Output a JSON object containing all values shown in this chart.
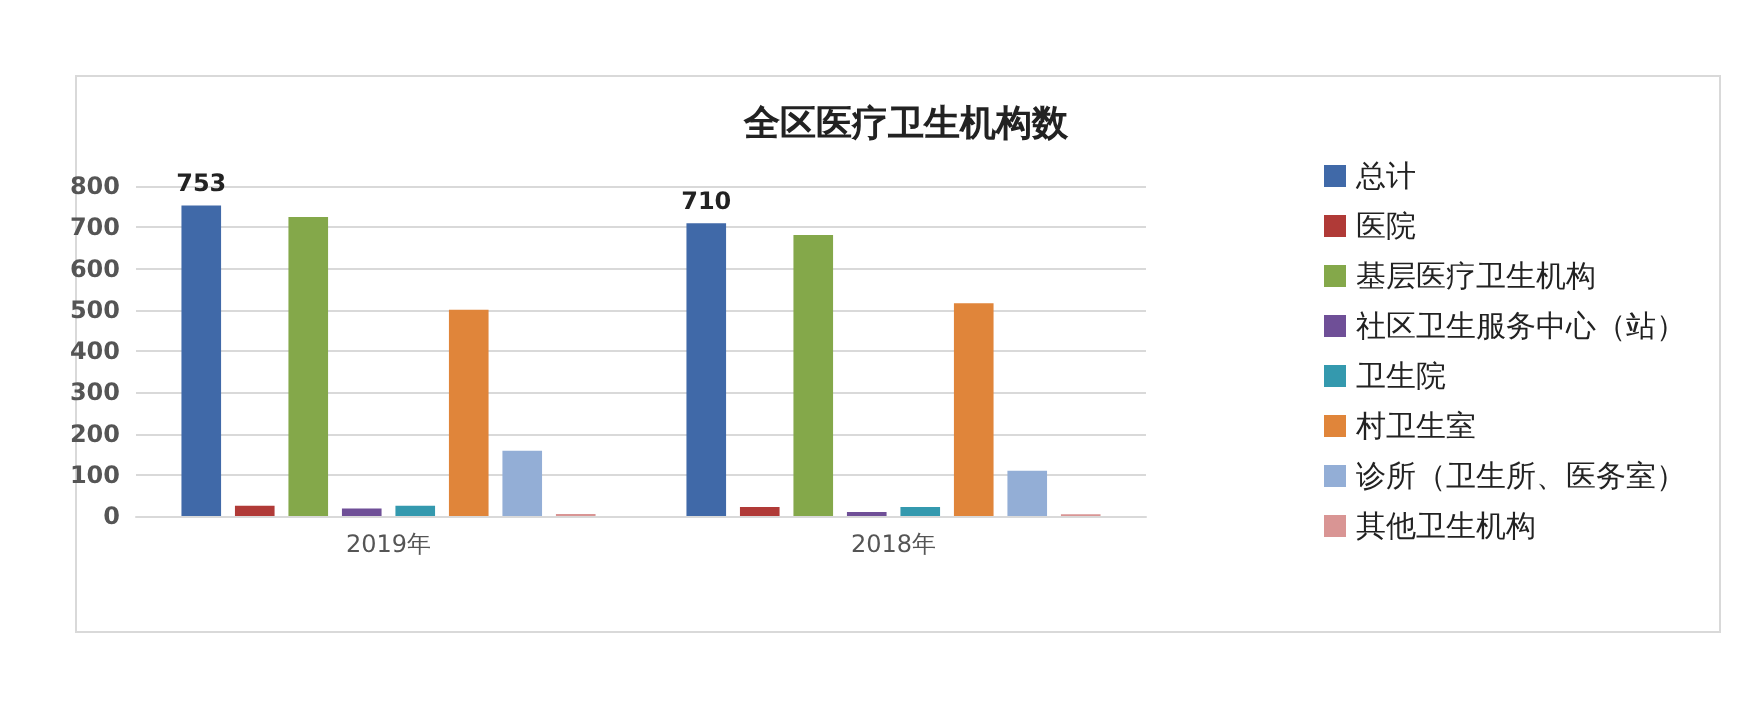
{
  "chart_data": {
    "type": "bar",
    "title": "全区医疗卫生机构数",
    "categories": [
      "2019年",
      "2018年"
    ],
    "series": [
      {
        "name": "总计",
        "color": "#4069a8",
        "values": [
          753,
          710
        ],
        "value_labels": [
          "753",
          "710"
        ]
      },
      {
        "name": "医院",
        "color": "#b03a37",
        "values": [
          25,
          22
        ]
      },
      {
        "name": "基层医疗卫生机构",
        "color": "#84a84a",
        "values": [
          725,
          681
        ]
      },
      {
        "name": "社区卫生服务中心（站）",
        "color": "#6f4f97",
        "values": [
          18,
          10
        ]
      },
      {
        "name": "卫生院",
        "color": "#3499ae",
        "values": [
          25,
          22
        ]
      },
      {
        "name": "村卫生室",
        "color": "#e0853a",
        "values": [
          500,
          516
        ]
      },
      {
        "name": "诊所（卫生所、医务室）",
        "color": "#93aed6",
        "values": [
          158,
          110
        ]
      },
      {
        "name": "其他卫生机构",
        "color": "#d99594",
        "values": [
          5,
          4
        ]
      }
    ],
    "ylim": [
      0,
      800
    ],
    "yticks": [
      0,
      100,
      200,
      300,
      400,
      500,
      600,
      700,
      800
    ],
    "grid": "y",
    "legend": "right"
  }
}
